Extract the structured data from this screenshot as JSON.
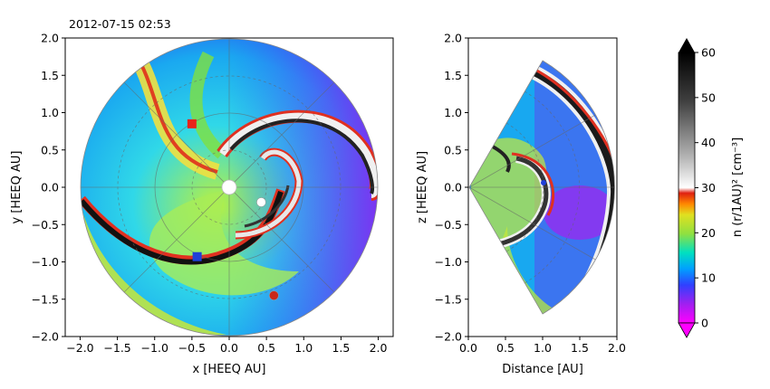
{
  "timestamp": "2012-07-15 02:53",
  "chart_data": [
    {
      "type": "heatmap",
      "panel": "equatorial",
      "xlabel": "x [HEEQ AU]",
      "ylabel": "y [HEEQ AU]",
      "xlim": [
        -2.2,
        2.2
      ],
      "ylim": [
        -2.0,
        2.0
      ],
      "xticks": [
        "−2.0",
        "−1.5",
        "−1.0",
        "−0.5",
        "0.0",
        "0.5",
        "1.0",
        "1.5",
        "2.0"
      ],
      "yticks": [
        "−2.0",
        "−1.5",
        "−1.0",
        "−0.5",
        "0.0",
        "0.5",
        "1.0",
        "1.5",
        "2.0"
      ],
      "xtick_values": [
        -2.0,
        -1.5,
        -1.0,
        -0.5,
        0.0,
        0.5,
        1.0,
        1.5,
        2.0
      ],
      "ytick_values": [
        -2.0,
        -1.5,
        -1.0,
        -0.5,
        0.0,
        0.5,
        1.0,
        1.5,
        2.0
      ],
      "domain_radius_au": 2.0,
      "markers": [
        {
          "shape": "square",
          "color": "#e8231a",
          "x": -0.5,
          "y": 0.85
        },
        {
          "shape": "square",
          "color": "#1f3fd8",
          "x": -0.43,
          "y": -0.93
        },
        {
          "shape": "circle",
          "color": "#c8281a",
          "x": 0.6,
          "y": -1.45
        },
        {
          "shape": "circle",
          "color": "#ffffff",
          "x": 0.43,
          "y": -0.2
        }
      ]
    },
    {
      "type": "heatmap",
      "panel": "meridional",
      "xlabel": "Distance [AU]",
      "ylabel": "z [HEEQ AU]",
      "xlim": [
        0.0,
        2.0
      ],
      "ylim": [
        -2.0,
        2.0
      ],
      "xticks": [
        "0.0",
        "0.5",
        "1.0",
        "1.5",
        "2.0"
      ],
      "yticks": [
        "−2.0",
        "−1.5",
        "−1.0",
        "−0.5",
        "0.0",
        "0.5",
        "1.0",
        "1.5",
        "2.0"
      ],
      "xtick_values": [
        0.0,
        0.5,
        1.0,
        1.5,
        2.0
      ],
      "ytick_values": [
        -2.0,
        -1.5,
        -1.0,
        -0.5,
        0.0,
        0.5,
        1.0,
        1.5,
        2.0
      ],
      "wedge_half_angle_deg": 60
    }
  ],
  "colorbar": {
    "label": "n (r/1AU)² [cm⁻³]",
    "range": [
      0,
      60
    ],
    "ticks": [
      "0",
      "10",
      "20",
      "30",
      "40",
      "50",
      "60"
    ],
    "tick_values": [
      0,
      10,
      20,
      30,
      40,
      50,
      60
    ],
    "colors": [
      "#ff00ff",
      "#a020f0",
      "#3040ff",
      "#00b0ff",
      "#00e0c0",
      "#80e040",
      "#d8e020",
      "#ff8800",
      "#e02010",
      "#ffffff",
      "#a0a0a0",
      "#303030",
      "#000000"
    ],
    "extend": "both"
  }
}
